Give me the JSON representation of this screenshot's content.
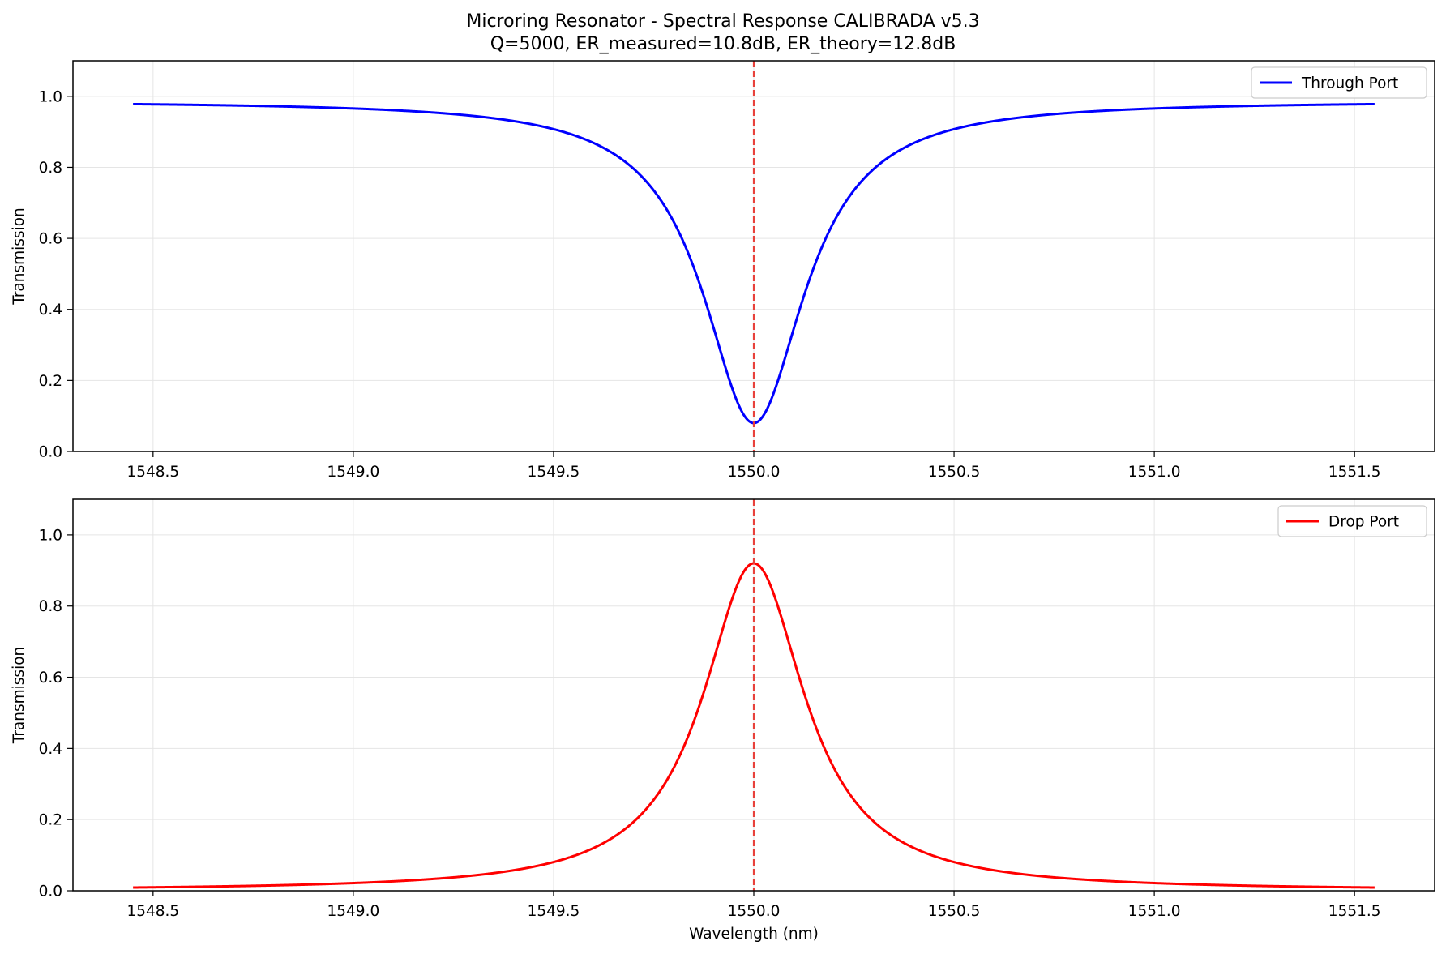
{
  "figure": {
    "title_line1": "Microring Resonator - Spectral Response CALIBRADA v5.3",
    "title_line2": "Q=5000, ER_measured=10.8dB, ER_theory=12.8dB"
  },
  "chart_data": [
    {
      "type": "line",
      "xlabel": "",
      "ylabel": "Transmission",
      "xlim": [
        1548.3,
        1551.7
      ],
      "ylim": [
        0.0,
        1.1
      ],
      "xticks": [
        1548.5,
        1549.0,
        1549.5,
        1550.0,
        1550.5,
        1551.0,
        1551.5
      ],
      "xtick_labels": [
        "1548.5",
        "1549.0",
        "1549.5",
        "1550.0",
        "1550.5",
        "1551.0",
        "1551.5"
      ],
      "yticks": [
        0.0,
        0.2,
        0.4,
        0.6,
        0.8,
        1.0
      ],
      "ytick_labels": [
        "0.0",
        "0.2",
        "0.4",
        "0.6",
        "0.8",
        "1.0"
      ],
      "grid": true,
      "legend_position": "top-right",
      "resonance_marker": {
        "x": 1550.0,
        "style": "dashed",
        "color": "#e8413b"
      },
      "series": [
        {
          "name": "Through Port",
          "color": "#0000ff",
          "x_range": [
            1548.45,
            1551.55
          ],
          "shape": "lorentzian-dip",
          "center": 1550.0,
          "fwhm": 0.31,
          "baseline": 0.987,
          "extremum": 0.08
        }
      ]
    },
    {
      "type": "line",
      "xlabel": "Wavelength (nm)",
      "ylabel": "Transmission",
      "xlim": [
        1548.3,
        1551.7
      ],
      "ylim": [
        0.0,
        1.1
      ],
      "xticks": [
        1548.5,
        1549.0,
        1549.5,
        1550.0,
        1550.5,
        1551.0,
        1551.5
      ],
      "xtick_labels": [
        "1548.5",
        "1549.0",
        "1549.5",
        "1550.0",
        "1550.5",
        "1551.0",
        "1551.5"
      ],
      "yticks": [
        0.0,
        0.2,
        0.4,
        0.6,
        0.8,
        1.0
      ],
      "ytick_labels": [
        "0.0",
        "0.2",
        "0.4",
        "0.6",
        "0.8",
        "1.0"
      ],
      "grid": true,
      "legend_position": "top-right",
      "resonance_marker": {
        "x": 1550.0,
        "style": "dashed",
        "color": "#e8413b"
      },
      "series": [
        {
          "name": "Drop Port",
          "color": "#ff0000",
          "x_range": [
            1548.45,
            1551.55
          ],
          "shape": "lorentzian-peak",
          "center": 1550.0,
          "fwhm": 0.31,
          "baseline": 0.0,
          "extremum": 0.92
        }
      ]
    }
  ]
}
